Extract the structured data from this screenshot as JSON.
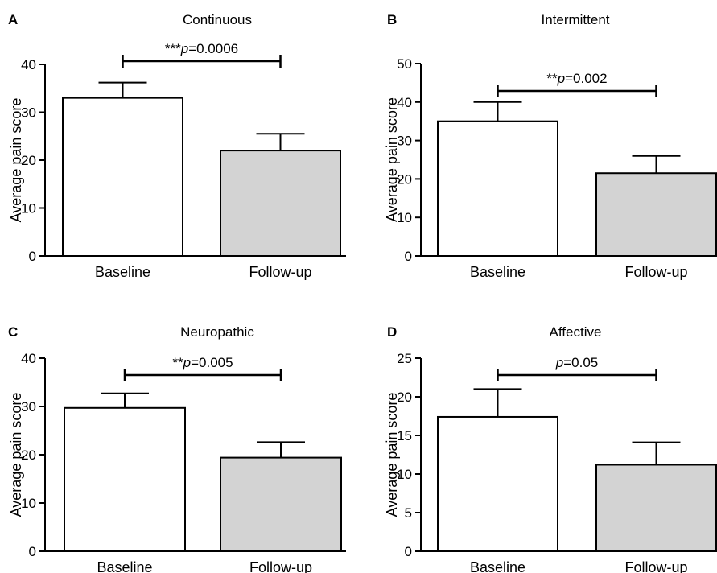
{
  "chart_data": [
    {
      "type": "bar",
      "panel": "A",
      "title": "Continuous",
      "ylabel": "Average pain score",
      "categories": [
        "Baseline",
        "Follow-up"
      ],
      "values": [
        33,
        22
      ],
      "errors": [
        3.2,
        3.5
      ],
      "ylim": [
        0,
        40
      ],
      "yticks": [
        0,
        10,
        20,
        30,
        40
      ],
      "bar_colors": [
        "#ffffff",
        "#d3d3d3"
      ],
      "significance": {
        "stars": "***",
        "p_prefix": "p",
        "p_value": "=0.0006"
      }
    },
    {
      "type": "bar",
      "panel": "B",
      "title": "Intermittent",
      "ylabel": "Average pain score",
      "categories": [
        "Baseline",
        "Follow-up"
      ],
      "values": [
        35,
        21.5
      ],
      "errors": [
        5,
        4.5
      ],
      "ylim": [
        0,
        50
      ],
      "yticks": [
        0,
        10,
        20,
        30,
        40,
        50
      ],
      "bar_colors": [
        "#ffffff",
        "#d3d3d3"
      ],
      "significance": {
        "stars": "**",
        "p_prefix": "p",
        "p_value": "=0.002"
      }
    },
    {
      "type": "bar",
      "panel": "C",
      "title": "Neuropathic",
      "ylabel": "Average pain score",
      "categories": [
        "Baseline",
        "Follow-up"
      ],
      "values": [
        29.7,
        19.4
      ],
      "errors": [
        3.0,
        3.2
      ],
      "ylim": [
        0,
        40
      ],
      "yticks": [
        0,
        10,
        20,
        30,
        40
      ],
      "bar_colors": [
        "#ffffff",
        "#d3d3d3"
      ],
      "significance": {
        "stars": "**",
        "p_prefix": "p",
        "p_value": "=0.005"
      }
    },
    {
      "type": "bar",
      "panel": "D",
      "title": "Affective",
      "ylabel": "Average pain score",
      "categories": [
        "Baseline",
        "Follow-up"
      ],
      "values": [
        17.4,
        11.2
      ],
      "errors": [
        3.6,
        2.9
      ],
      "ylim": [
        0,
        25
      ],
      "yticks": [
        0,
        5,
        10,
        15,
        20,
        25
      ],
      "bar_colors": [
        "#ffffff",
        "#d3d3d3"
      ],
      "significance": {
        "stars": "",
        "p_prefix": "p",
        "p_value": "=0.05"
      }
    }
  ]
}
